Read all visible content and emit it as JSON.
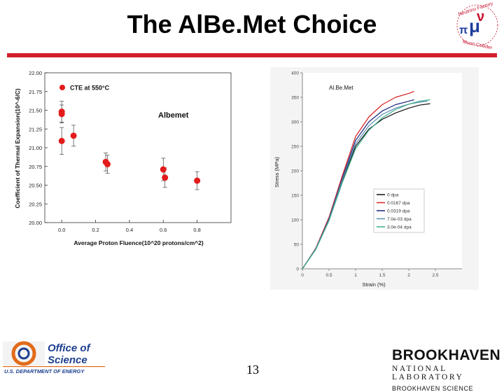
{
  "slide": {
    "title": "The AlBe.Met Choice",
    "page_number": "13"
  },
  "logos": {
    "neutrino": {
      "lines": [
        "Neutrino Factory",
        "Muon Collider"
      ],
      "accent_colors": [
        "#c8102e",
        "#1f3e9c"
      ]
    },
    "doe": {
      "line1": "Office of",
      "line2": "Science",
      "line3": "U.S. DEPARTMENT OF ENERGY"
    },
    "bnl": {
      "name": "BROOKHAVEN",
      "sub": "NATIONAL LABORATORY",
      "footer": "BROOKHAVEN SCIENCE"
    }
  },
  "colors": {
    "accent": "#d11f2b",
    "doe_blue": "#1d3f8f",
    "doe_orange": "#e26b1a"
  },
  "chart_data": [
    {
      "type": "scatter",
      "title": "Albemet",
      "xlabel": "Average Proton Fluence(10^20 protons/cm^2)",
      "ylabel": "Coefficient of Thermal Expansion(10^-6/C)",
      "xlim": [
        -0.1,
        1.0
      ],
      "ylim": [
        20.0,
        22.0
      ],
      "x_ticks": [
        "0.0",
        "0.2",
        "0.4",
        "0.6",
        "0.8"
      ],
      "y_ticks": [
        "20.00",
        "20.25",
        "20.50",
        "20.75",
        "21.00",
        "21.25",
        "21.50",
        "21.75",
        "22.00"
      ],
      "legend": "CTE at 550°C",
      "legend_position": "top-left",
      "series": [
        {
          "name": "CTE at 550°C",
          "color": "#e31b1b",
          "points": [
            {
              "x": 0.0,
              "y": 21.48,
              "err": 0.14
            },
            {
              "x": 0.0,
              "y": 21.45,
              "err": 0.12
            },
            {
              "x": 0.0,
              "y": 21.09,
              "err": 0.18
            },
            {
              "x": 0.07,
              "y": 21.16,
              "err": 0.14
            },
            {
              "x": 0.26,
              "y": 20.81,
              "err": 0.12
            },
            {
              "x": 0.27,
              "y": 20.78,
              "err": 0.12
            },
            {
              "x": 0.6,
              "y": 20.71,
              "err": 0.15
            },
            {
              "x": 0.61,
              "y": 20.6,
              "err": 0.13
            },
            {
              "x": 0.8,
              "y": 20.56,
              "err": 0.12
            }
          ]
        }
      ]
    },
    {
      "type": "line",
      "title": "Al.Be.Met",
      "xlabel": "Strain (%)",
      "ylabel": "Stress (MPa)",
      "xlim": [
        0,
        3.0
      ],
      "ylim": [
        0,
        400
      ],
      "x_ticks": [
        "0",
        "0.5",
        "1",
        "1.5",
        "2",
        "2.5"
      ],
      "y_ticks": [
        "0",
        "50",
        "100",
        "150",
        "200",
        "250",
        "300",
        "350",
        "400"
      ],
      "legend_position": "right",
      "series": [
        {
          "name": "0 dpa",
          "color": "#111111",
          "x": [
            0.0,
            0.25,
            0.5,
            0.75,
            1.0,
            1.25,
            1.5,
            1.75,
            2.0,
            2.2,
            2.4
          ],
          "y": [
            0,
            40,
            100,
            180,
            250,
            285,
            305,
            318,
            328,
            334,
            337
          ]
        },
        {
          "name": "0.0167 dpa",
          "color": "#d62020",
          "x": [
            0.0,
            0.25,
            0.5,
            0.75,
            1.0,
            1.25,
            1.5,
            1.75,
            2.0,
            2.1
          ],
          "y": [
            0,
            42,
            105,
            190,
            270,
            310,
            335,
            350,
            358,
            362
          ]
        },
        {
          "name": "0.0319 dpa",
          "color": "#1a237e",
          "x": [
            0.0,
            0.25,
            0.5,
            0.75,
            1.0,
            1.25,
            1.5,
            1.75,
            2.0,
            2.1
          ],
          "y": [
            0,
            40,
            102,
            185,
            262,
            300,
            322,
            335,
            342,
            345
          ]
        },
        {
          "name": "7.0e-03 dpa",
          "color": "#5a8fb0",
          "x": [
            0.0,
            0.25,
            0.5,
            0.75,
            1.0,
            1.25,
            1.5,
            1.75,
            2.0,
            2.2,
            2.35
          ],
          "y": [
            0,
            41,
            100,
            182,
            255,
            292,
            315,
            328,
            336,
            340,
            342
          ]
        },
        {
          "name": "3.0e-04 dpa",
          "color": "#3aaa8a",
          "x": [
            0.0,
            0.25,
            0.5,
            0.75,
            1.0,
            1.25,
            1.5,
            1.75,
            2.0,
            2.2,
            2.4
          ],
          "y": [
            0,
            39,
            98,
            176,
            245,
            283,
            308,
            325,
            336,
            342,
            345
          ]
        }
      ]
    }
  ]
}
